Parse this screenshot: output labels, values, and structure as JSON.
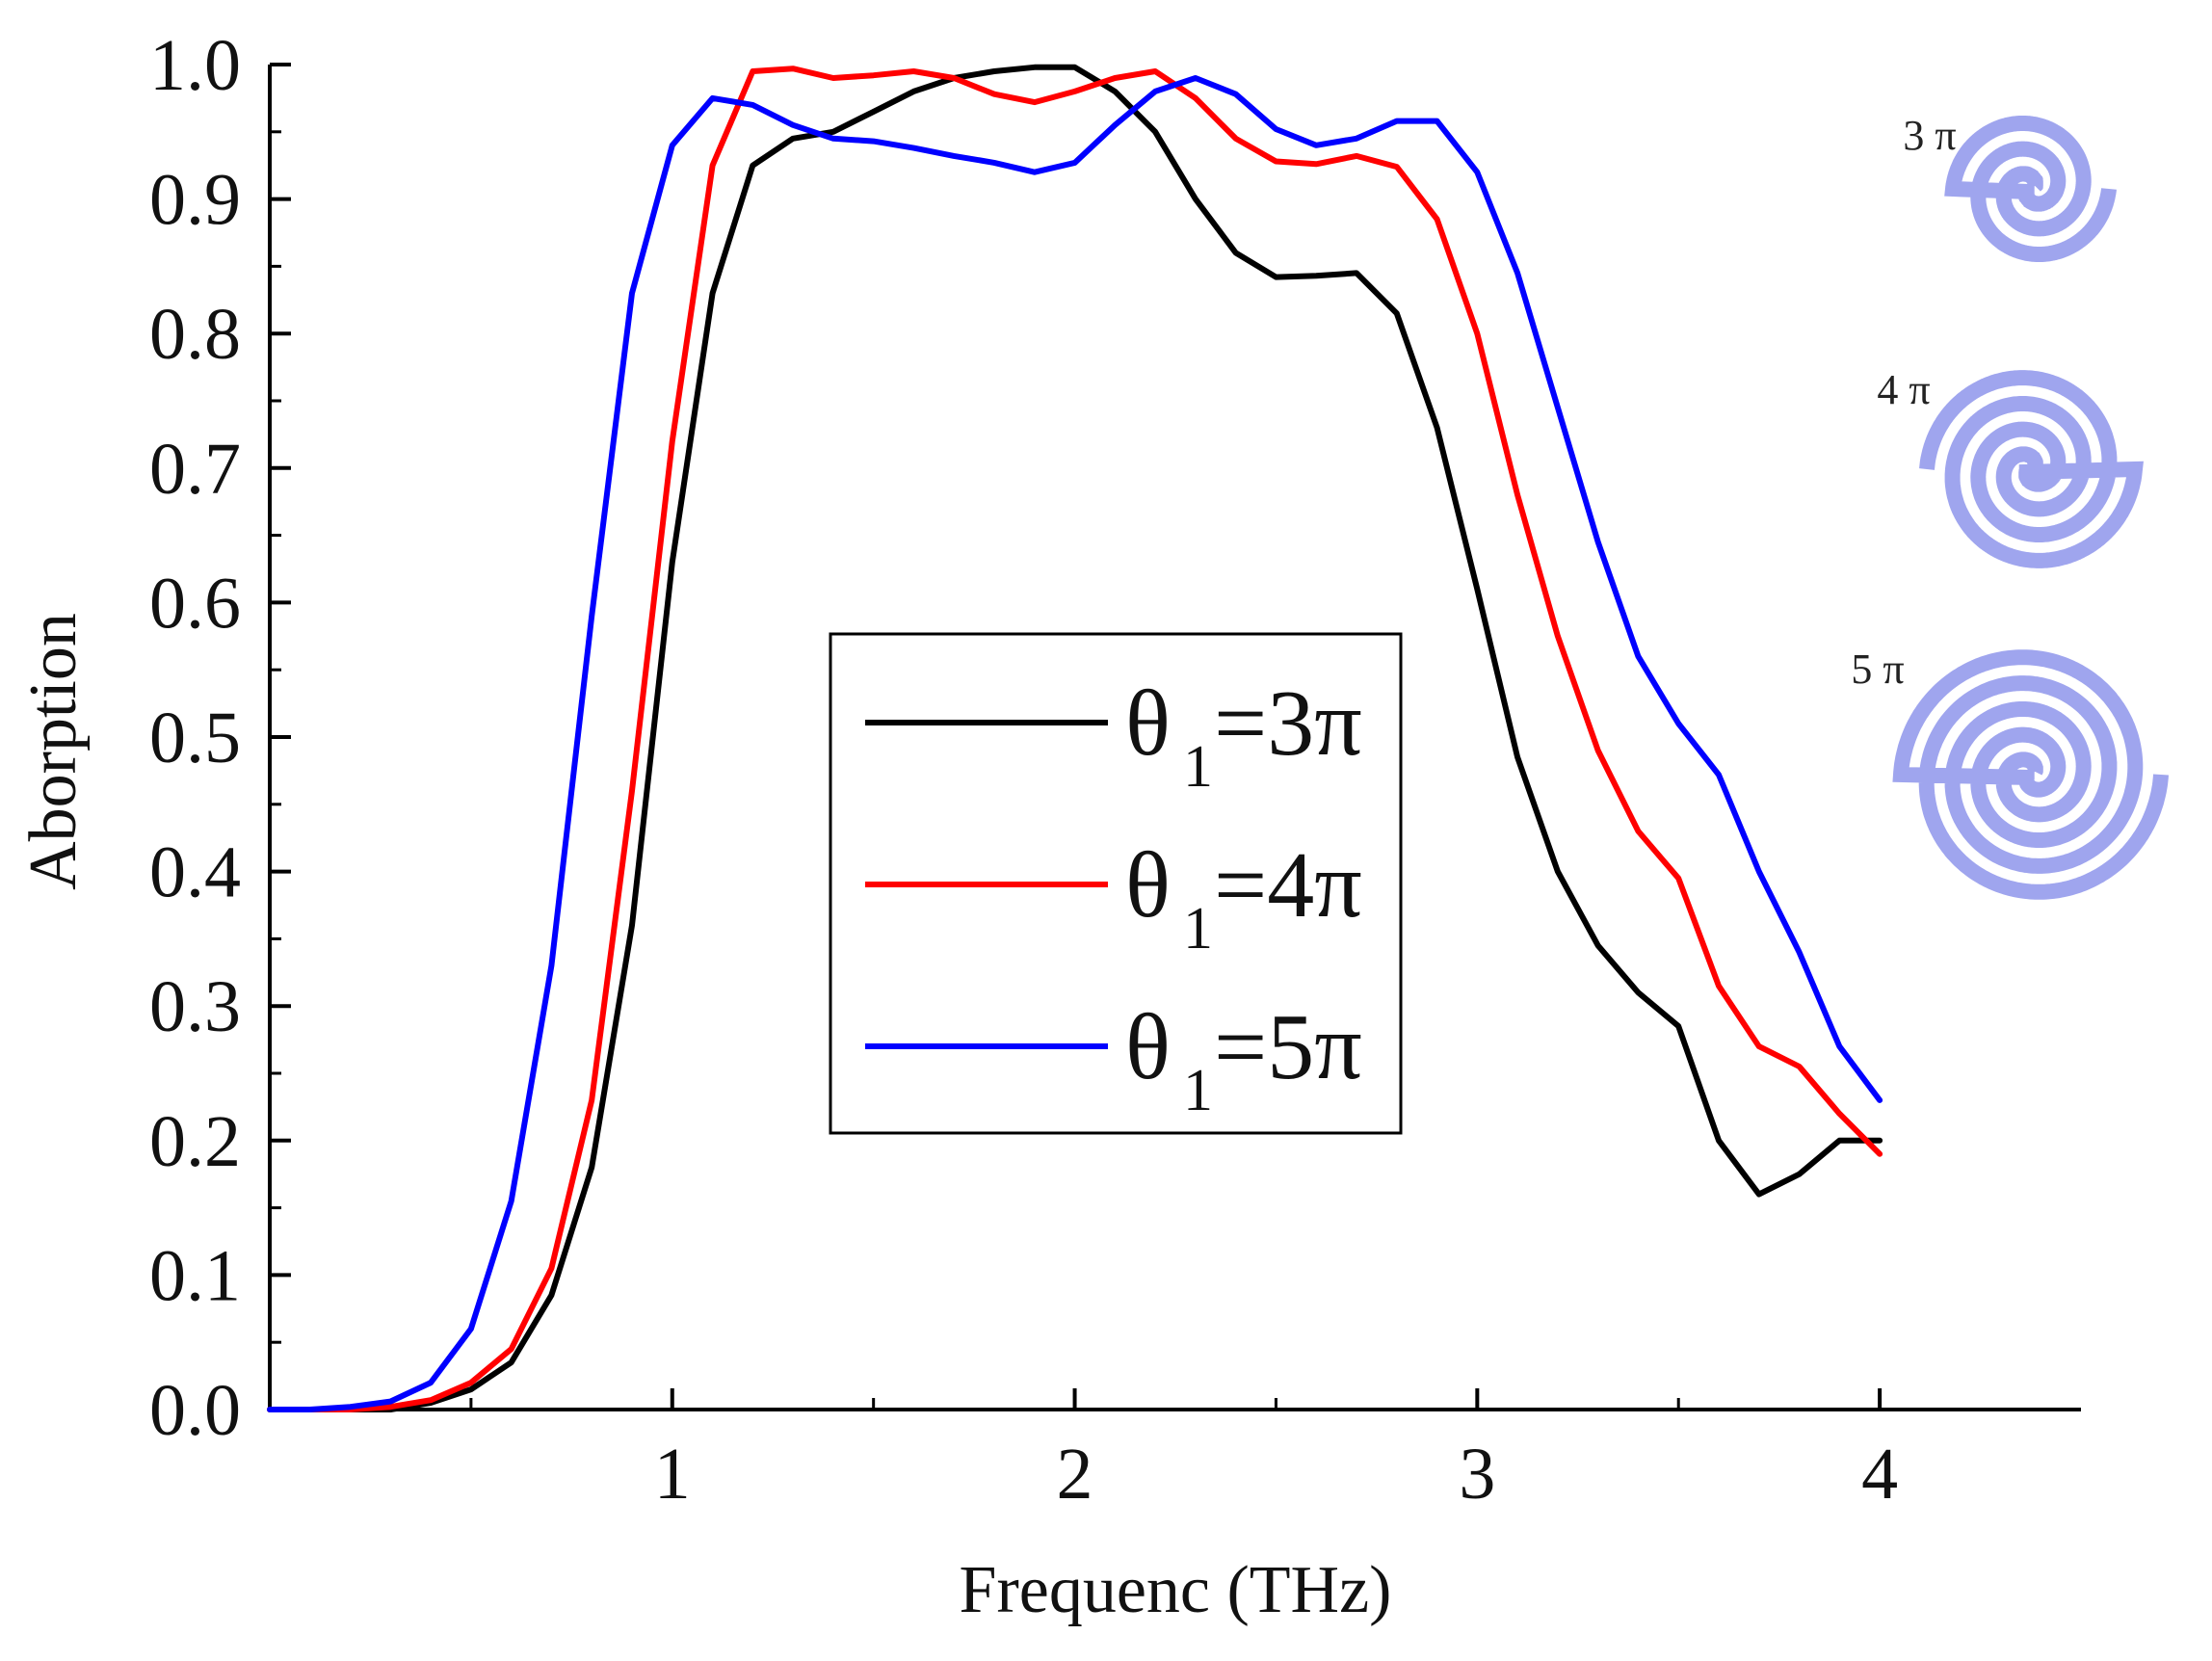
{
  "chart_data": {
    "type": "line",
    "title": "",
    "xlabel": "Frequenc (THz)",
    "ylabel": "Aborption",
    "xlim": [
      0,
      4.5
    ],
    "ylim": [
      0,
      1.0
    ],
    "x_ticks": [
      "1",
      "2",
      "3",
      "4"
    ],
    "y_ticks": [
      "0.0",
      "0.1",
      "0.2",
      "0.3",
      "0.4",
      "0.5",
      "0.6",
      "0.7",
      "0.8",
      "0.9",
      "1.0"
    ],
    "legend_position": "center",
    "series": [
      {
        "name": "θ1=3π",
        "theta_symbol": "θ",
        "subscript": "1",
        "value_text": "=3π",
        "color": "#000000",
        "x": [
          0.0,
          0.1,
          0.2,
          0.3,
          0.4,
          0.5,
          0.6,
          0.7,
          0.8,
          0.9,
          1.0,
          1.1,
          1.2,
          1.3,
          1.4,
          1.5,
          1.6,
          1.7,
          1.8,
          1.9,
          2.0,
          2.1,
          2.2,
          2.3,
          2.4,
          2.5,
          2.6,
          2.7,
          2.8,
          2.9,
          3.0,
          3.1,
          3.2,
          3.3,
          3.4,
          3.5,
          3.6,
          3.7,
          3.8,
          3.9,
          4.0
        ],
        "y": [
          0.0,
          0.0,
          0.0,
          0.0,
          0.005,
          0.015,
          0.035,
          0.085,
          0.18,
          0.36,
          0.63,
          0.83,
          0.925,
          0.945,
          0.95,
          0.965,
          0.98,
          0.99,
          0.995,
          0.998,
          0.998,
          0.98,
          0.95,
          0.9,
          0.86,
          0.842,
          0.843,
          0.845,
          0.815,
          0.73,
          0.61,
          0.485,
          0.4,
          0.345,
          0.31,
          0.285,
          0.2,
          0.16,
          0.175,
          0.2,
          0.2
        ]
      },
      {
        "name": "θ1=4π",
        "theta_symbol": "θ",
        "subscript": "1",
        "value_text": "=4π",
        "color": "#ff0000",
        "x": [
          0.0,
          0.1,
          0.2,
          0.3,
          0.4,
          0.5,
          0.6,
          0.7,
          0.8,
          0.9,
          1.0,
          1.1,
          1.2,
          1.3,
          1.4,
          1.5,
          1.6,
          1.7,
          1.8,
          1.9,
          2.0,
          2.1,
          2.2,
          2.3,
          2.4,
          2.5,
          2.6,
          2.7,
          2.8,
          2.9,
          3.0,
          3.1,
          3.2,
          3.3,
          3.4,
          3.5,
          3.6,
          3.7,
          3.8,
          3.9,
          4.0
        ],
        "y": [
          0.0,
          0.0,
          0.0,
          0.002,
          0.007,
          0.02,
          0.045,
          0.105,
          0.23,
          0.46,
          0.72,
          0.925,
          0.995,
          0.997,
          0.99,
          0.992,
          0.995,
          0.99,
          0.978,
          0.972,
          0.98,
          0.99,
          0.995,
          0.975,
          0.945,
          0.928,
          0.926,
          0.932,
          0.924,
          0.885,
          0.8,
          0.68,
          0.575,
          0.49,
          0.43,
          0.395,
          0.315,
          0.27,
          0.255,
          0.22,
          0.19
        ]
      },
      {
        "name": "θ1=5π",
        "theta_symbol": "θ",
        "subscript": "1",
        "value_text": "=5π",
        "color": "#0000ff",
        "x": [
          0.0,
          0.1,
          0.2,
          0.3,
          0.4,
          0.5,
          0.6,
          0.7,
          0.8,
          0.9,
          1.0,
          1.1,
          1.2,
          1.3,
          1.4,
          1.5,
          1.6,
          1.7,
          1.8,
          1.9,
          2.0,
          2.1,
          2.2,
          2.3,
          2.4,
          2.5,
          2.6,
          2.7,
          2.8,
          2.9,
          3.0,
          3.1,
          3.2,
          3.3,
          3.4,
          3.5,
          3.6,
          3.7,
          3.8,
          3.9,
          4.0
        ],
        "y": [
          0.0,
          0.0,
          0.002,
          0.006,
          0.02,
          0.06,
          0.155,
          0.33,
          0.59,
          0.83,
          0.94,
          0.975,
          0.97,
          0.955,
          0.945,
          0.943,
          0.938,
          0.932,
          0.927,
          0.92,
          0.927,
          0.955,
          0.98,
          0.99,
          0.978,
          0.952,
          0.94,
          0.945,
          0.958,
          0.958,
          0.92,
          0.845,
          0.745,
          0.645,
          0.56,
          0.51,
          0.472,
          0.4,
          0.34,
          0.27,
          0.23
        ]
      }
    ],
    "insets": [
      {
        "label": "3 π",
        "turns": 3
      },
      {
        "label": "4 π",
        "turns": 4
      },
      {
        "label": "5 π",
        "turns": 5
      }
    ],
    "spiral_color": "#9fa5ee"
  }
}
